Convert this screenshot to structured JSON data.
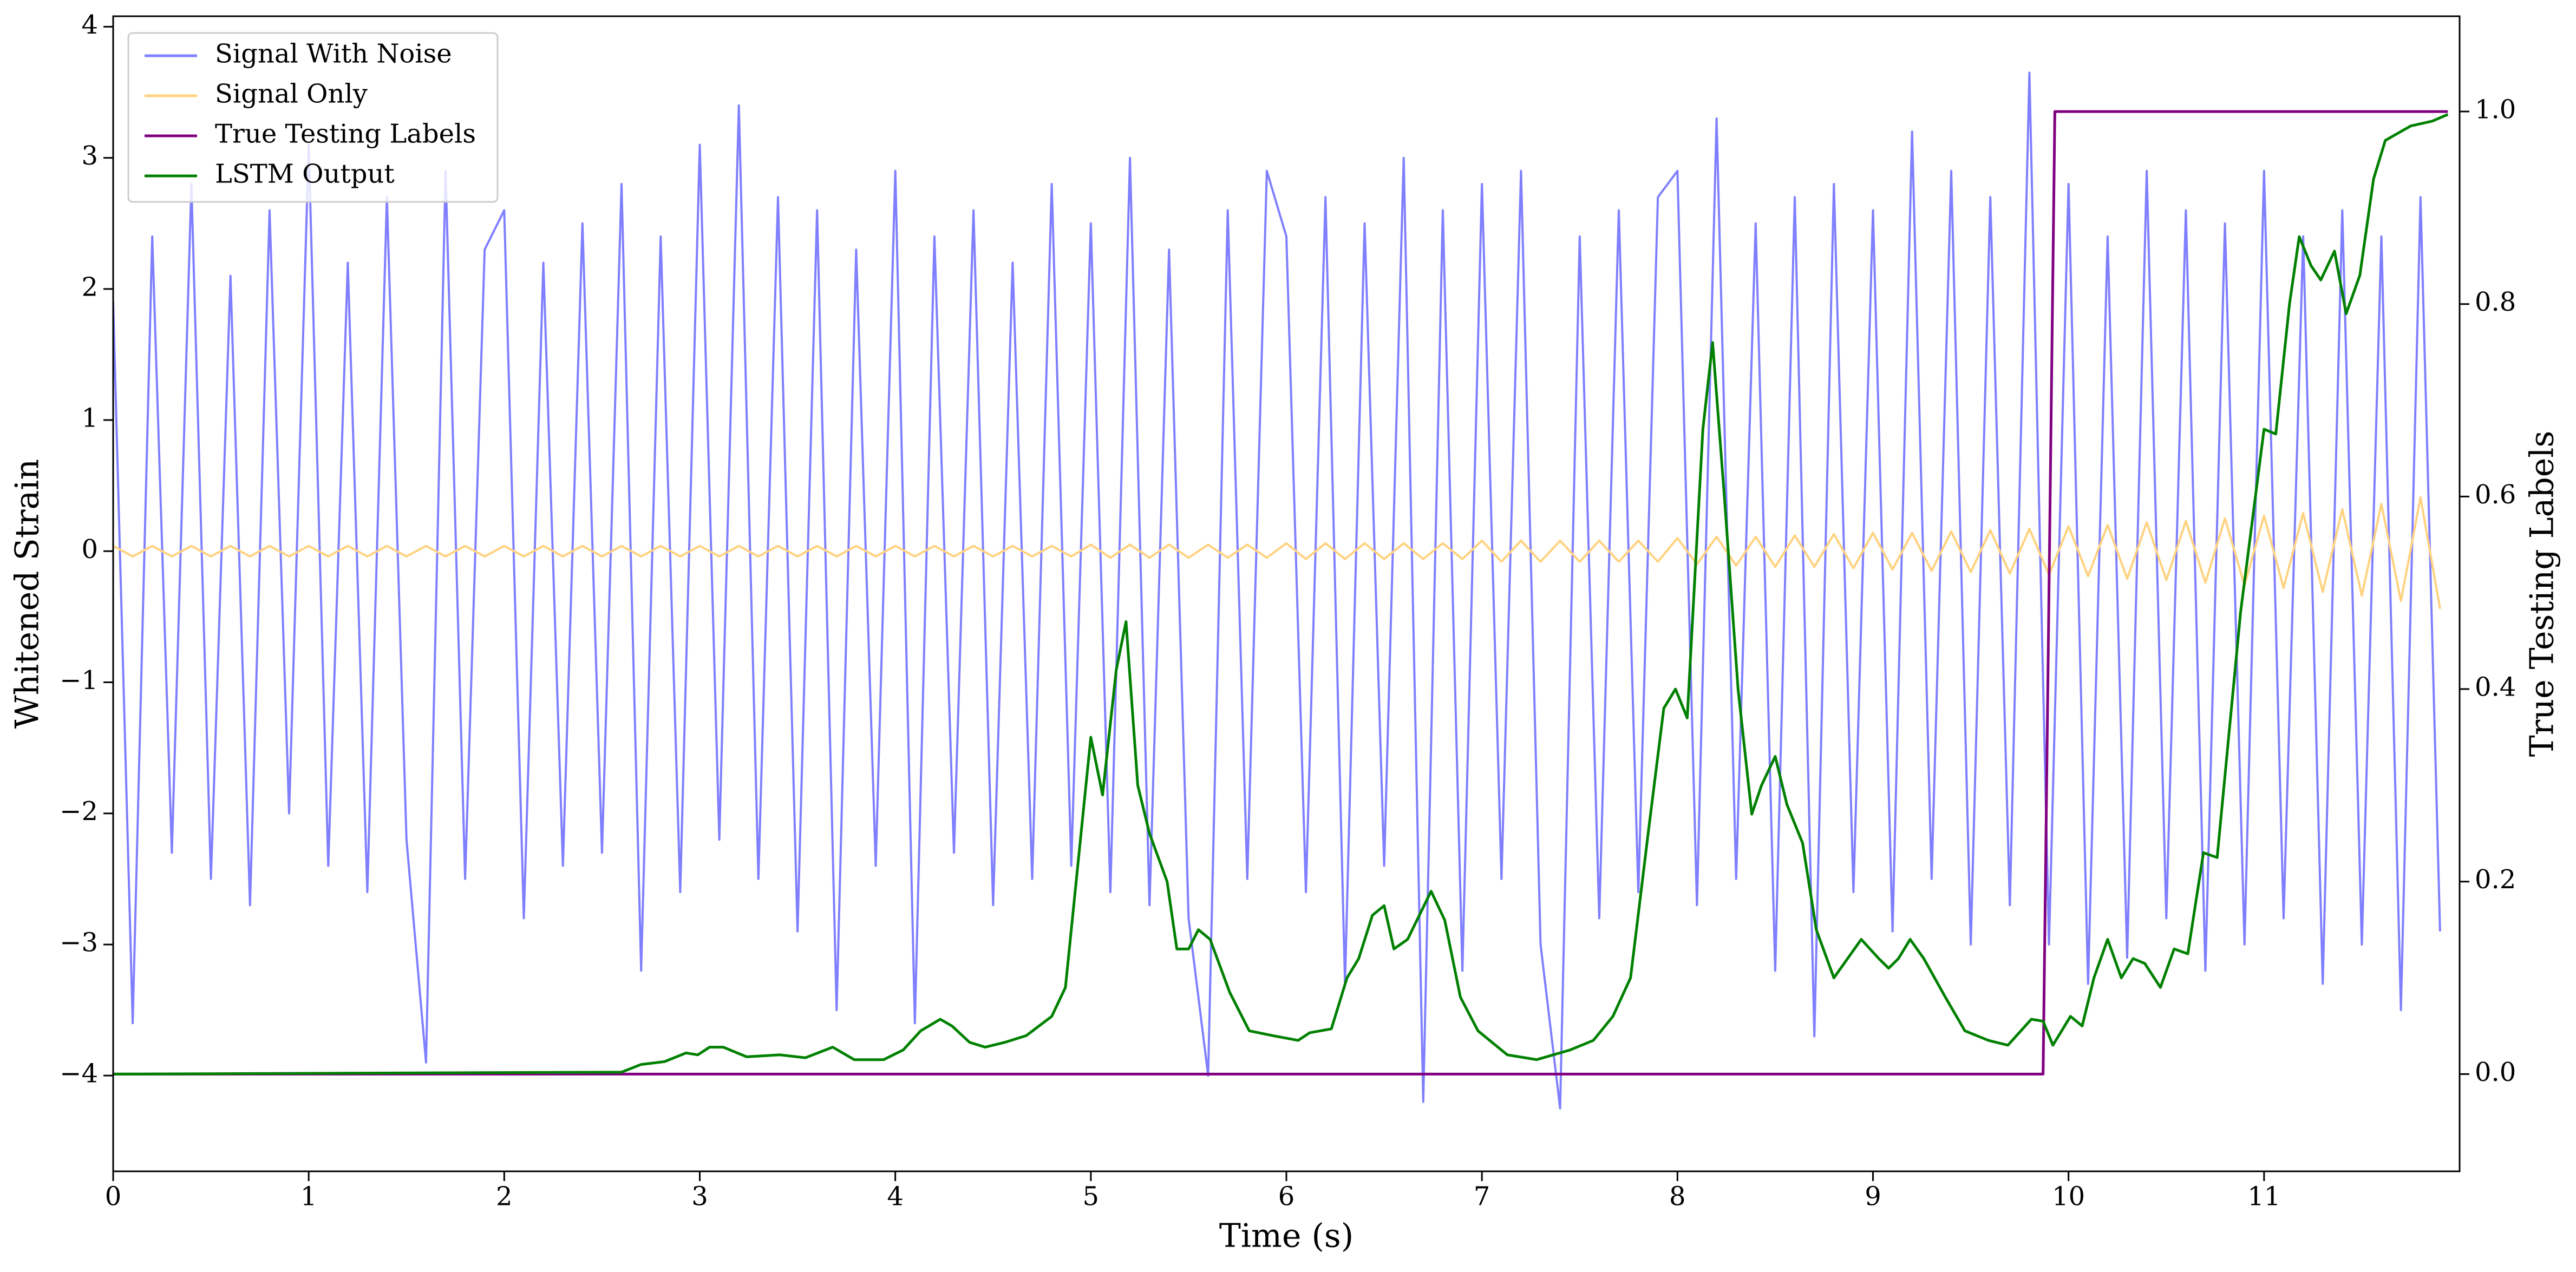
{
  "chart_data": {
    "type": "line",
    "x_label": "Time (s)",
    "y_label": "Whitened Strain",
    "y2_label": "True Testing Labels",
    "xlim": [
      0,
      12
    ],
    "xticks": [
      0,
      1,
      2,
      3,
      4,
      5,
      6,
      7,
      8,
      9,
      10,
      11
    ],
    "ylim": [
      -4.73,
      4.08
    ],
    "yticks": [
      {
        "value": -4,
        "label": "−4"
      },
      {
        "value": -3,
        "label": "−3"
      },
      {
        "value": -2,
        "label": "−2"
      },
      {
        "value": -1,
        "label": "−1"
      },
      0,
      1,
      2,
      3,
      4
    ],
    "y2lim": [
      -0.101,
      1.099
    ],
    "y2ticks": [
      {
        "value": 0,
        "label": "0.0"
      },
      0.2,
      0.4,
      0.6,
      0.8,
      {
        "value": 1,
        "label": "1.0"
      }
    ],
    "legend": "upper left",
    "x": [
      0,
      0.1,
      0.2,
      0.3,
      0.4,
      0.5,
      0.6,
      0.7,
      0.8,
      0.9,
      1,
      1.1,
      1.2,
      1.3,
      1.4,
      1.5,
      1.6,
      1.7,
      1.8,
      1.9,
      2,
      2.1,
      2.2,
      2.3,
      2.4,
      2.5,
      2.6,
      2.7,
      2.8,
      2.9,
      3,
      3.1,
      3.2,
      3.3,
      3.4,
      3.5,
      3.6,
      3.7,
      3.8,
      3.9,
      4,
      4.1,
      4.2,
      4.3,
      4.4,
      4.5,
      4.6,
      4.7,
      4.8,
      4.9,
      5,
      5.1,
      5.2,
      5.3,
      5.4,
      5.5,
      5.6,
      5.7,
      5.8,
      5.9,
      6,
      6.1,
      6.2,
      6.3,
      6.4,
      6.5,
      6.6,
      6.7,
      6.8,
      6.9,
      7,
      7.1,
      7.2,
      7.3,
      7.4,
      7.5,
      7.6,
      7.7,
      7.8,
      7.9,
      8,
      8.1,
      8.2,
      8.3,
      8.4,
      8.5,
      8.6,
      8.7,
      8.8,
      8.9,
      9,
      9.1,
      9.2,
      9.3,
      9.4,
      9.5,
      9.6,
      9.7,
      9.8,
      9.9,
      10,
      10.1,
      10.2,
      10.3,
      10.4,
      10.5,
      10.6,
      10.7,
      10.8,
      10.9,
      11,
      11.1,
      11.2,
      11.3,
      11.4,
      11.5,
      11.6,
      11.7,
      11.8,
      11.9
    ],
    "series": [
      {
        "name": "Signal With Noise",
        "color": "#7f7fff",
        "values": [
          1.9,
          -3.6,
          2.4,
          -2.3,
          2.8,
          -2.5,
          2.1,
          -2.7,
          2.6,
          -2.0,
          3.1,
          -2.4,
          2.2,
          -2.6,
          2.7,
          -2.2,
          -3.9,
          2.9,
          -2.5,
          2.3,
          2.6,
          -2.8,
          2.2,
          -2.4,
          2.5,
          -2.3,
          2.8,
          -3.2,
          2.4,
          -2.6,
          3.1,
          -2.2,
          3.4,
          -2.5,
          2.7,
          -2.9,
          2.6,
          -3.5,
          2.3,
          -2.4,
          2.9,
          -3.6,
          2.4,
          -2.3,
          2.6,
          -2.7,
          2.2,
          -2.5,
          2.8,
          -2.4,
          2.5,
          -2.6,
          3.0,
          -2.7,
          2.3,
          -2.8,
          -4.0,
          2.6,
          -2.5,
          2.9,
          2.4,
          -2.6,
          2.7,
          -3.3,
          2.5,
          -2.4,
          3.0,
          -4.2,
          2.6,
          -3.2,
          2.8,
          -2.5,
          2.9,
          -3.0,
          -4.25,
          2.4,
          -2.8,
          2.6,
          -2.6,
          2.7,
          2.9,
          -2.7,
          3.3,
          -2.5,
          2.5,
          -3.2,
          2.7,
          -3.7,
          2.8,
          -2.6,
          2.6,
          -2.9,
          3.2,
          -2.5,
          2.9,
          -3.0,
          2.7,
          -2.7,
          3.65,
          -3.0,
          2.8,
          -3.3,
          2.4,
          -3.1,
          2.9,
          -2.8,
          2.6,
          -3.2,
          2.5,
          -3.0,
          2.9,
          -2.8,
          2.4,
          -3.3,
          2.6,
          -3.0,
          2.4,
          -3.5,
          2.7,
          -2.9
        ]
      },
      {
        "name": "Signal Only",
        "color": "#ffd27f",
        "values": [
          0.04,
          -0.04,
          0.04,
          -0.04,
          0.04,
          -0.04,
          0.04,
          -0.04,
          0.04,
          -0.04,
          0.04,
          -0.04,
          0.04,
          -0.04,
          0.04,
          -0.04,
          0.04,
          -0.04,
          0.04,
          -0.04,
          0.04,
          -0.04,
          0.04,
          -0.04,
          0.04,
          -0.04,
          0.04,
          -0.04,
          0.04,
          -0.04,
          0.04,
          -0.04,
          0.04,
          -0.04,
          0.04,
          -0.04,
          0.04,
          -0.04,
          0.04,
          -0.04,
          0.04,
          -0.04,
          0.04,
          -0.04,
          0.04,
          -0.04,
          0.04,
          -0.04,
          0.04,
          -0.04,
          0.05,
          -0.05,
          0.05,
          -0.05,
          0.05,
          -0.05,
          0.05,
          -0.05,
          0.05,
          -0.05,
          0.06,
          -0.06,
          0.06,
          -0.06,
          0.06,
          -0.06,
          0.06,
          -0.06,
          0.06,
          -0.06,
          0.08,
          -0.08,
          0.08,
          -0.08,
          0.08,
          -0.08,
          0.08,
          -0.08,
          0.08,
          -0.08,
          0.1,
          -0.1,
          0.11,
          -0.11,
          0.11,
          -0.12,
          0.12,
          -0.12,
          0.13,
          -0.13,
          0.14,
          -0.14,
          0.14,
          -0.15,
          0.15,
          -0.16,
          0.16,
          -0.17,
          0.17,
          -0.18,
          0.19,
          -0.19,
          0.2,
          -0.21,
          0.22,
          -0.22,
          0.23,
          -0.24,
          0.25,
          -0.26,
          0.27,
          -0.28,
          0.29,
          -0.31,
          0.32,
          -0.34,
          0.36,
          -0.38,
          0.41,
          -0.44
        ]
      },
      {
        "name": "True Testing Labels",
        "color": "#800080",
        "axis": "y2",
        "x": [
          0,
          9.87,
          9.93,
          11.94
        ],
        "values": [
          0,
          0,
          1,
          1
        ]
      },
      {
        "name": "LSTM Output",
        "color": "#008000",
        "axis": "y2",
        "x": [
          0,
          2.6,
          2.7,
          2.82,
          2.93,
          2.99,
          3.05,
          3.12,
          3.24,
          3.41,
          3.54,
          3.68,
          3.79,
          3.94,
          4.04,
          4.13,
          4.23,
          4.29,
          4.38,
          4.46,
          4.56,
          4.67,
          4.8,
          4.87,
          5.0,
          5.06,
          5.13,
          5.18,
          5.24,
          5.3,
          5.39,
          5.44,
          5.5,
          5.55,
          5.61,
          5.71,
          5.81,
          5.93,
          6.06,
          6.12,
          6.23,
          6.31,
          6.37,
          6.44,
          6.5,
          6.55,
          6.62,
          6.74,
          6.81,
          6.89,
          6.98,
          7.13,
          7.28,
          7.45,
          7.57,
          7.67,
          7.76,
          7.85,
          7.93,
          7.99,
          8.05,
          8.13,
          8.18,
          8.24,
          8.31,
          8.38,
          8.43,
          8.5,
          8.56,
          8.64,
          8.71,
          8.8,
          8.94,
          9.03,
          9.08,
          9.13,
          9.19,
          9.26,
          9.37,
          9.47,
          9.59,
          9.69,
          9.81,
          9.87,
          9.92,
          10.01,
          10.07,
          10.13,
          10.2,
          10.27,
          10.33,
          10.39,
          10.47,
          10.54,
          10.61,
          10.69,
          10.76,
          10.88,
          11.0,
          11.06,
          11.13,
          11.18,
          11.24,
          11.29,
          11.36,
          11.42,
          11.49,
          11.56,
          11.62,
          11.75,
          11.86,
          11.94
        ],
        "values": [
          0,
          0.002,
          0.01,
          0.013,
          0.022,
          0.02,
          0.028,
          0.028,
          0.018,
          0.02,
          0.017,
          0.028,
          0.015,
          0.015,
          0.025,
          0.045,
          0.057,
          0.05,
          0.033,
          0.028,
          0.033,
          0.04,
          0.06,
          0.09,
          0.35,
          0.29,
          0.42,
          0.47,
          0.3,
          0.25,
          0.2,
          0.13,
          0.13,
          0.15,
          0.14,
          0.085,
          0.045,
          0.04,
          0.035,
          0.043,
          0.047,
          0.1,
          0.12,
          0.165,
          0.175,
          0.13,
          0.14,
          0.19,
          0.16,
          0.08,
          0.045,
          0.02,
          0.015,
          0.025,
          0.035,
          0.06,
          0.1,
          0.25,
          0.38,
          0.4,
          0.37,
          0.67,
          0.76,
          0.6,
          0.4,
          0.27,
          0.3,
          0.33,
          0.28,
          0.24,
          0.15,
          0.1,
          0.14,
          0.12,
          0.11,
          0.12,
          0.14,
          0.12,
          0.08,
          0.045,
          0.035,
          0.03,
          0.057,
          0.055,
          0.03,
          0.06,
          0.05,
          0.1,
          0.14,
          0.1,
          0.12,
          0.115,
          0.09,
          0.13,
          0.125,
          0.23,
          0.225,
          0.48,
          0.67,
          0.665,
          0.8,
          0.87,
          0.84,
          0.825,
          0.855,
          0.79,
          0.83,
          0.93,
          0.97,
          0.985,
          0.99,
          0.997
        ]
      }
    ]
  }
}
